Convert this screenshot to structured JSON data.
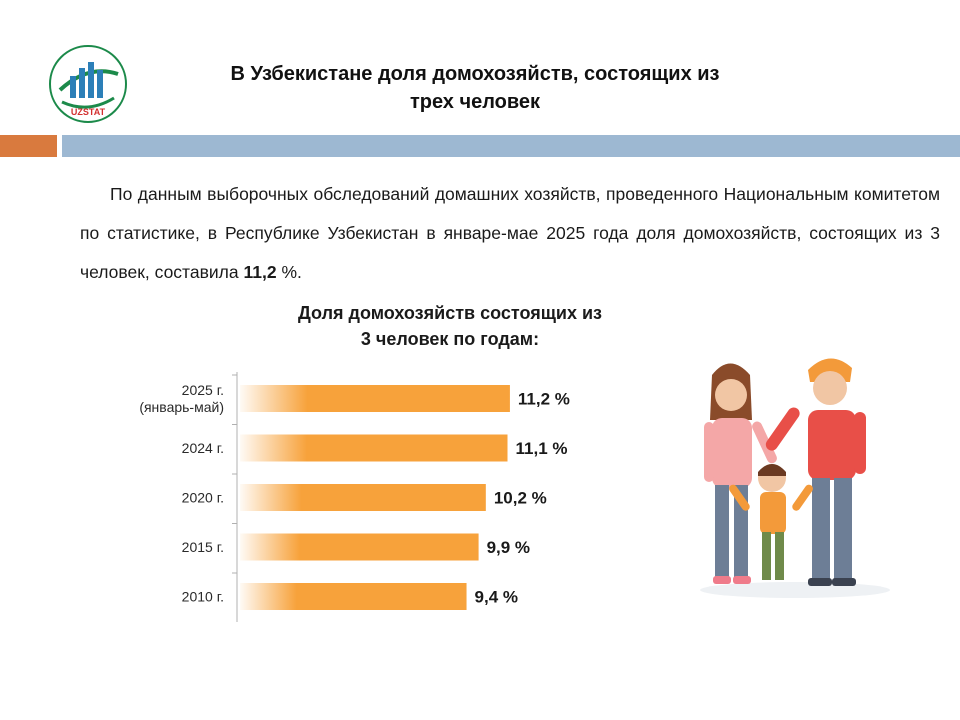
{
  "header": {
    "logo_text": "UZSTAT",
    "title_line1": "В Узбекистане доля домохозяйств, состоящих из",
    "title_line2": "трех человек"
  },
  "intro": {
    "text_before": "По данным выборочных обследований домашних хозяйств, проведенного Национальным комитетом по статистике, в Республике Узбекистан в январе-мае 2025 года доля домохозяйств, состоящих из 3 человек, составила ",
    "highlight": "11,2",
    "text_after": " %."
  },
  "colors": {
    "bar": "#f7a23b",
    "band_orange": "#d97a3e",
    "band_blue": "#9db8d2"
  },
  "chart_data": {
    "type": "bar",
    "orientation": "horizontal",
    "title_line1": "Доля домохозяйств состоящих из",
    "title_line2": "3 человек по годам:",
    "categories": [
      [
        "2025 г.",
        "(январь-май)"
      ],
      [
        "2024 г."
      ],
      [
        "2020 г."
      ],
      [
        "2015 г."
      ],
      [
        "2010 г."
      ]
    ],
    "values": [
      11.2,
      11.1,
      10.2,
      9.9,
      9.4
    ],
    "value_labels": [
      "11,2 %",
      "11,1 %",
      "10,2 %",
      "9,9 %",
      "9,4 %"
    ],
    "unit": "%",
    "grid": false,
    "legend": "none"
  }
}
